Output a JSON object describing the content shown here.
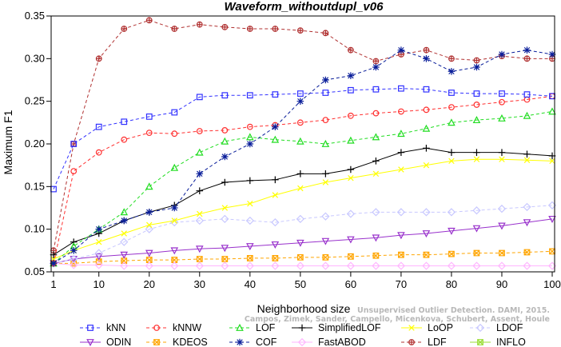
{
  "chart_data": {
    "type": "line",
    "title": "Waveform_withoutdupl_v06",
    "xlabel": "Neighborhood size",
    "ylabel": "Maximum F1",
    "xlim": [
      1,
      100
    ],
    "ylim": [
      0.05,
      0.35
    ],
    "xticks": [
      "1",
      "10",
      "20",
      "30",
      "40",
      "50",
      "60",
      "70",
      "80",
      "90",
      "100"
    ],
    "yticks": [
      "0.05",
      "0.10",
      "0.15",
      "0.20",
      "0.25",
      "0.30",
      "0.35"
    ],
    "grid": false,
    "legend_position": "bottom",
    "x": [
      1,
      5,
      10,
      15,
      20,
      25,
      30,
      35,
      40,
      45,
      50,
      55,
      60,
      65,
      70,
      75,
      80,
      85,
      90,
      95,
      100
    ],
    "series": [
      {
        "name": "kNN",
        "color": "#3232ff",
        "marker": "square",
        "dashed": true,
        "values": [
          0.147,
          0.2,
          0.22,
          0.226,
          0.232,
          0.237,
          0.255,
          0.257,
          0.257,
          0.258,
          0.259,
          0.26,
          0.263,
          0.264,
          0.265,
          0.264,
          0.26,
          0.259,
          0.259,
          0.258,
          0.256
        ]
      },
      {
        "name": "kNNW",
        "color": "#ff3030",
        "marker": "circle",
        "dashed": true,
        "values": [
          0.06,
          0.168,
          0.19,
          0.205,
          0.213,
          0.212,
          0.215,
          0.216,
          0.22,
          0.222,
          0.225,
          0.228,
          0.233,
          0.236,
          0.238,
          0.24,
          0.243,
          0.246,
          0.249,
          0.252,
          0.256
        ]
      },
      {
        "name": "LOF",
        "color": "#22dd22",
        "marker": "triangle-up",
        "dashed": true,
        "values": [
          0.06,
          0.08,
          0.1,
          0.12,
          0.15,
          0.172,
          0.19,
          0.203,
          0.208,
          0.205,
          0.203,
          0.2,
          0.204,
          0.208,
          0.212,
          0.218,
          0.225,
          0.228,
          0.23,
          0.233,
          0.238
        ]
      },
      {
        "name": "SimplifiedLOF",
        "color": "#000000",
        "marker": "plus",
        "dashed": false,
        "values": [
          0.07,
          0.085,
          0.095,
          0.11,
          0.12,
          0.128,
          0.145,
          0.155,
          0.157,
          0.158,
          0.165,
          0.165,
          0.17,
          0.18,
          0.19,
          0.195,
          0.19,
          0.19,
          0.19,
          0.188,
          0.186
        ]
      },
      {
        "name": "LoOP",
        "color": "#ffff00",
        "marker": "x",
        "dashed": false,
        "values": [
          0.065,
          0.075,
          0.085,
          0.095,
          0.105,
          0.11,
          0.118,
          0.125,
          0.13,
          0.14,
          0.148,
          0.155,
          0.16,
          0.165,
          0.17,
          0.175,
          0.18,
          0.182,
          0.182,
          0.181,
          0.18
        ]
      },
      {
        "name": "LDOF",
        "color": "#c8c8ff",
        "marker": "diamond",
        "dashed": true,
        "values": [
          0.06,
          0.065,
          0.072,
          0.085,
          0.1,
          0.108,
          0.11,
          0.112,
          0.11,
          0.108,
          0.112,
          0.115,
          0.118,
          0.12,
          0.12,
          0.12,
          0.12,
          0.122,
          0.124,
          0.126,
          0.128
        ]
      },
      {
        "name": "ODIN",
        "color": "#9932cc",
        "marker": "triangle-down",
        "dashed": false,
        "values": [
          0.06,
          0.065,
          0.068,
          0.07,
          0.072,
          0.075,
          0.077,
          0.078,
          0.08,
          0.082,
          0.084,
          0.086,
          0.088,
          0.09,
          0.093,
          0.095,
          0.098,
          0.101,
          0.104,
          0.108,
          0.112
        ]
      },
      {
        "name": "KDEOS",
        "color": "#ffa500",
        "marker": "square-x",
        "dashed": true,
        "values": [
          0.06,
          0.06,
          0.062,
          0.063,
          0.064,
          0.064,
          0.065,
          0.065,
          0.066,
          0.066,
          0.067,
          0.067,
          0.068,
          0.069,
          0.07,
          0.07,
          0.071,
          0.072,
          0.072,
          0.073,
          0.074
        ]
      },
      {
        "name": "COF",
        "color": "#0a1e9a",
        "marker": "asterisk",
        "dashed": true,
        "values": [
          0.06,
          0.075,
          0.1,
          0.11,
          0.12,
          0.125,
          0.165,
          0.185,
          0.2,
          0.22,
          0.25,
          0.275,
          0.28,
          0.29,
          0.31,
          0.3,
          0.285,
          0.29,
          0.305,
          0.31,
          0.305
        ]
      },
      {
        "name": "FastABOD",
        "color": "#ffb6ff",
        "marker": "diamond",
        "dashed": false,
        "values": [
          0.06,
          0.058,
          0.058,
          0.057,
          0.057,
          0.057,
          0.057,
          0.057,
          0.057,
          0.057,
          0.057,
          0.057,
          0.057,
          0.057,
          0.057,
          0.057,
          0.057,
          0.057,
          0.057,
          0.057,
          0.057
        ]
      },
      {
        "name": "LDF",
        "color": "#b03030",
        "marker": "circle-plus",
        "dashed": true,
        "values": [
          0.075,
          0.2,
          0.3,
          0.335,
          0.345,
          0.335,
          0.34,
          0.337,
          0.335,
          0.335,
          0.333,
          0.33,
          0.31,
          0.297,
          0.305,
          0.31,
          0.3,
          0.298,
          0.303,
          0.3,
          0.3
        ]
      },
      {
        "name": "INFLO",
        "color": "#99dd33",
        "marker": "square-x",
        "dashed": false,
        "values": [
          0.06,
          0.07,
          0.085,
          0.1,
          0.105,
          0.11,
          0.117,
          0.125,
          0.132,
          0.137,
          0.14,
          0.14,
          0.148,
          0.152,
          0.156,
          0.16,
          0.16,
          0.162,
          0.163,
          0.164,
          0.166
        ]
      }
    ],
    "annotation": "Unsupervised Outlier Detection. DAMI, 2015.",
    "annotation2": "Campos, Zimek, Sander, Campello, Micenkova, Schubert, Assent, Houle"
  }
}
